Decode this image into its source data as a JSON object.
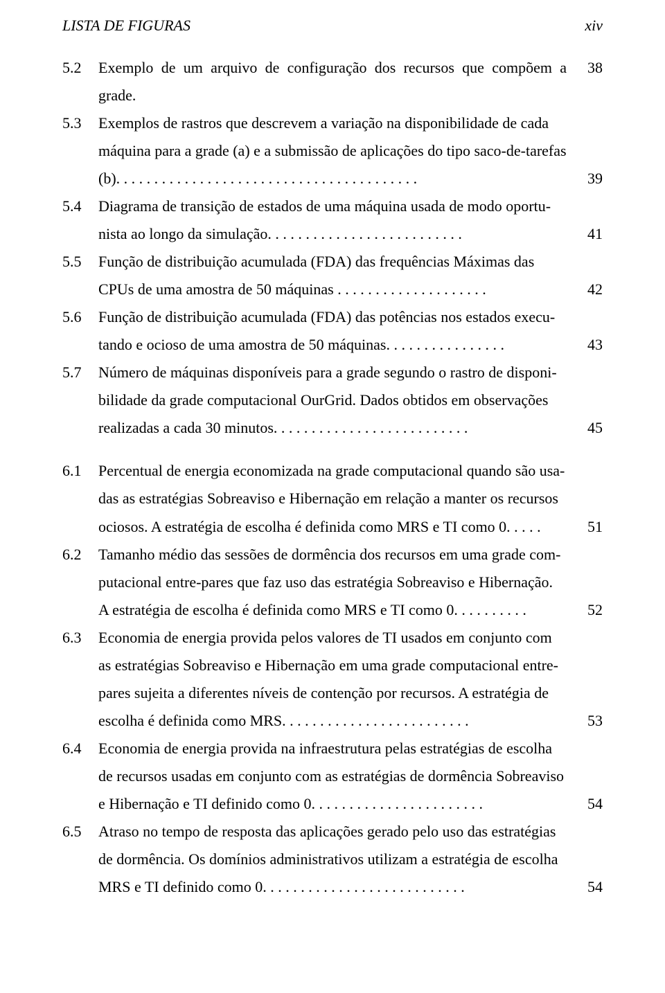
{
  "header": {
    "left": "LISTA DE FIGURAS",
    "right": "xiv"
  },
  "entries": [
    {
      "num": "5.2",
      "lines": [
        {
          "t": "Exemplo de um arquivo de configuração dos recursos que compõem a grade.",
          "pg": "38"
        }
      ]
    },
    {
      "num": "5.3",
      "lines": [
        {
          "t": "Exemplos de rastros que descrevem a variação na disponibilidade de cada"
        },
        {
          "t": "máquina para a grade (a) e a submissão de aplicações do tipo saco-de-tarefas"
        },
        {
          "t": "(b). . . . . . . . . . . . . . . . . . . . . . . . . . . . . . . . . . . . . . . .",
          "pg": "39"
        }
      ]
    },
    {
      "num": "5.4",
      "lines": [
        {
          "t": "Diagrama de transição de estados de uma máquina usada de modo oportu-"
        },
        {
          "t": "nista ao longo da simulação.  . . . . . . . . . . . . . . . . . . . . . . . . .",
          "pg": "41"
        }
      ]
    },
    {
      "num": "5.5",
      "lines": [
        {
          "t": "Função de distribuição acumulada (FDA) das frequências Máximas das"
        },
        {
          "t": "CPUs de uma amostra de 50 máquinas . . . . . . . . . . . . . . . . . . . .",
          "pg": "42"
        }
      ]
    },
    {
      "num": "5.6",
      "lines": [
        {
          "t": "Função de distribuição acumulada (FDA) das potências nos estados execu-"
        },
        {
          "t": "tando e ocioso de uma amostra de 50 máquinas.  . . . . . . . . . . . . . . .",
          "pg": "43"
        }
      ]
    },
    {
      "num": "5.7",
      "lines": [
        {
          "t": "Número de máquinas disponíveis para a grade segundo o rastro de disponi-"
        },
        {
          "t": "bilidade da grade computacional OurGrid. Dados obtidos em observações"
        },
        {
          "t": "realizadas a cada 30 minutos.  . . . . . . . . . . . . . . . . . . . . . . . . .",
          "pg": "45"
        }
      ]
    },
    {
      "gap": true
    },
    {
      "num": "6.1",
      "lines": [
        {
          "t": "Percentual de energia economizada na grade computacional quando são usa-"
        },
        {
          "t": "das as estratégias Sobreaviso e Hibernação em relação a manter os recursos"
        },
        {
          "t": "ociosos. A estratégia de escolha é definida como MRS e TI como 0.  . . . .",
          "pg": "51"
        }
      ]
    },
    {
      "num": "6.2",
      "lines": [
        {
          "t": "Tamanho médio das sessões de dormência dos recursos em uma grade com-"
        },
        {
          "t": "putacional entre-pares que faz uso das estratégia Sobreaviso e Hibernação."
        },
        {
          "t": "A estratégia de escolha é definida como MRS e TI como 0. . . . . . . . . .",
          "pg": "52"
        }
      ]
    },
    {
      "num": "6.3",
      "lines": [
        {
          "t": "Economia de energia provida pelos valores de TI usados em conjunto com"
        },
        {
          "t": "as estratégias Sobreaviso e Hibernação em uma grade computacional entre-"
        },
        {
          "t": "pares sujeita a diferentes níveis de contenção por recursos. A estratégia de"
        },
        {
          "t": "escolha é definida como MRS.  . . . . . . . . . . . . . . . . . . . . . . . .",
          "pg": "53"
        }
      ]
    },
    {
      "num": "6.4",
      "lines": [
        {
          "t": "Economia de energia provida na infraestrutura pelas estratégias de escolha"
        },
        {
          "t": "de recursos usadas em conjunto com as estratégias de dormência Sobreaviso"
        },
        {
          "t": "e Hibernação e TI definido como 0. . . . . . . . . . . . . . . . . . . . . . .",
          "pg": "54"
        }
      ]
    },
    {
      "num": "6.5",
      "lines": [
        {
          "t": "Atraso no tempo de resposta das aplicações gerado pelo uso das estratégias"
        },
        {
          "t": "de dormência. Os domínios administrativos utilizam a estratégia de escolha"
        },
        {
          "t": "MRS e TI definido como 0. . . . . . . . . . . . . . . . . . . . . . . . . . .",
          "pg": "54"
        }
      ]
    }
  ]
}
